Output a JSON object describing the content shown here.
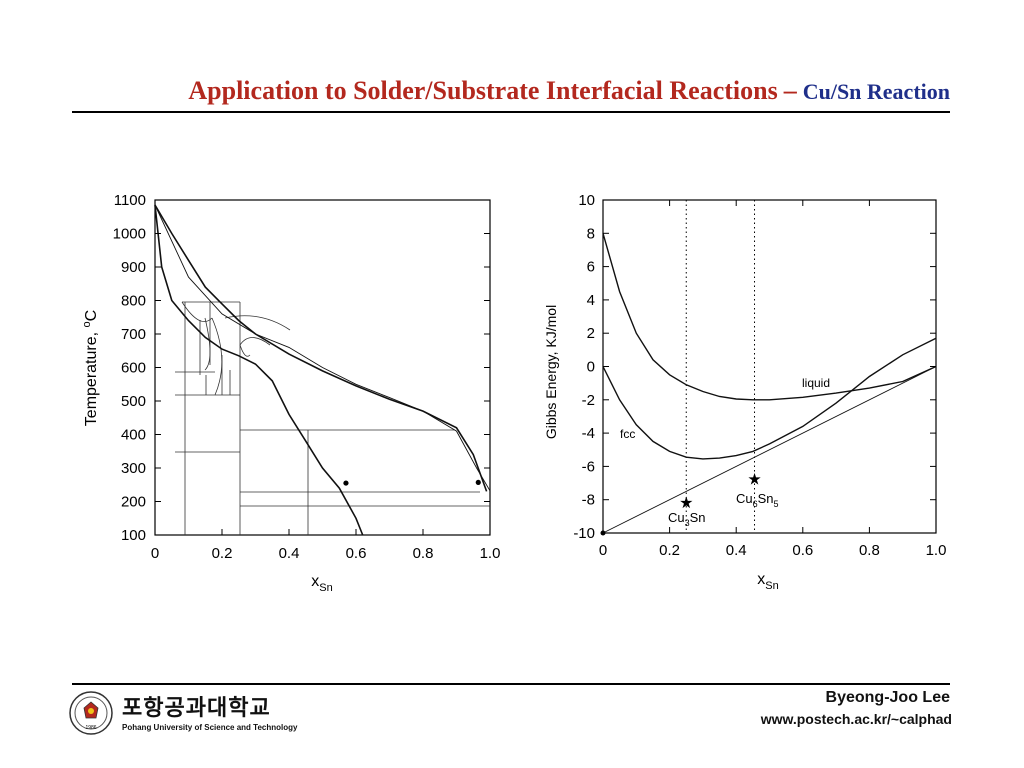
{
  "title": {
    "main": "Application to Solder/Substrate Interfacial Reactions",
    "dash": "–",
    "sub": "Cu/Sn Reaction"
  },
  "chart_data": [
    {
      "type": "line",
      "chart": "phase-diagram",
      "xlabel": "x",
      "xlabel_sub": "Sn",
      "ylabel": "Temperature, ",
      "ylabel_unit": "oC",
      "xlim": [
        0,
        1.0
      ],
      "ylim": [
        100,
        1100
      ],
      "x_ticks": [
        "0",
        "0.2",
        "0.4",
        "0.6",
        "0.8",
        "1.0"
      ],
      "y_ticks": [
        "100",
        "200",
        "300",
        "400",
        "500",
        "600",
        "700",
        "800",
        "900",
        "1000",
        "1100"
      ],
      "x_tick_values": [
        0,
        0.2,
        0.4,
        0.6,
        0.8,
        1.0
      ],
      "y_tick_values": [
        100,
        200,
        300,
        400,
        500,
        600,
        700,
        800,
        900,
        1000,
        1100
      ],
      "curves": [
        {
          "name": "",
          "style": "solid-bold",
          "points": [
            [
              0,
              1085
            ],
            [
              0.05,
              1000
            ],
            [
              0.1,
              920
            ],
            [
              0.15,
              840
            ],
            [
              0.2,
              790
            ],
            [
              0.25,
              740
            ],
            [
              0.3,
              700
            ],
            [
              0.4,
              640
            ],
            [
              0.5,
              590
            ],
            [
              0.6,
              545
            ],
            [
              0.7,
              505
            ],
            [
              0.8,
              470
            ],
            [
              0.9,
              420
            ],
            [
              0.95,
              340
            ],
            [
              0.99,
              230
            ]
          ]
        },
        {
          "name": "",
          "style": "solid-bold",
          "points": [
            [
              0,
              1085
            ],
            [
              0.02,
              900
            ],
            [
              0.05,
              800
            ],
            [
              0.1,
              740
            ],
            [
              0.15,
              690
            ],
            [
              0.2,
              655
            ],
            [
              0.25,
              635
            ],
            [
              0.3,
              610
            ],
            [
              0.35,
              560
            ],
            [
              0.4,
              460
            ],
            [
              0.45,
              380
            ],
            [
              0.5,
              300
            ],
            [
              0.55,
              240
            ],
            [
              0.6,
              150
            ],
            [
              0.62,
              100
            ]
          ]
        },
        {
          "name": "",
          "style": "solid-thin",
          "points": [
            [
              0,
              1085
            ],
            [
              0.1,
              870
            ],
            [
              0.2,
              760
            ],
            [
              0.3,
              700
            ],
            [
              0.4,
              660
            ],
            [
              0.5,
              600
            ],
            [
              0.6,
              550
            ],
            [
              0.7,
              510
            ],
            [
              0.8,
              470
            ],
            [
              0.9,
              410
            ],
            [
              0.96,
              300
            ],
            [
              1.0,
              232
            ]
          ]
        }
      ],
      "markers": [
        {
          "x": 0.57,
          "y": 255
        },
        {
          "x": 0.965,
          "y": 257
        }
      ]
    },
    {
      "type": "line",
      "chart": "gibbs-energy",
      "xlabel": "x",
      "xlabel_sub": "Sn",
      "ylabel": "Gibbs Energy, KJ/mol",
      "xlim": [
        0,
        1.0
      ],
      "ylim": [
        -10,
        10
      ],
      "x_ticks": [
        "0",
        "0.2",
        "0.4",
        "0.6",
        "0.8",
        "1.0"
      ],
      "y_ticks": [
        "10",
        "8",
        "6",
        "4",
        "2",
        "0",
        "-2",
        "-4",
        "-6",
        "-8",
        "-10"
      ],
      "x_tick_values": [
        0,
        0.2,
        0.4,
        0.6,
        0.8,
        1.0
      ],
      "y_tick_values": [
        10,
        8,
        6,
        4,
        2,
        0,
        -2,
        -4,
        -6,
        -8,
        -10
      ],
      "series": [
        {
          "name": "liquid",
          "points": [
            [
              0,
              8.0
            ],
            [
              0.05,
              4.5
            ],
            [
              0.1,
              2.0
            ],
            [
              0.15,
              0.4
            ],
            [
              0.2,
              -0.5
            ],
            [
              0.25,
              -1.1
            ],
            [
              0.3,
              -1.5
            ],
            [
              0.35,
              -1.8
            ],
            [
              0.4,
              -1.95
            ],
            [
              0.45,
              -2.0
            ],
            [
              0.5,
              -2.0
            ],
            [
              0.6,
              -1.85
            ],
            [
              0.7,
              -1.6
            ],
            [
              0.8,
              -1.3
            ],
            [
              0.9,
              -0.9
            ],
            [
              1.0,
              0.0
            ]
          ]
        },
        {
          "name": "fcc",
          "points": [
            [
              0,
              0.0
            ],
            [
              0.05,
              -2.0
            ],
            [
              0.1,
              -3.5
            ],
            [
              0.15,
              -4.5
            ],
            [
              0.2,
              -5.1
            ],
            [
              0.25,
              -5.45
            ],
            [
              0.3,
              -5.55
            ],
            [
              0.35,
              -5.5
            ],
            [
              0.4,
              -5.35
            ],
            [
              0.45,
              -5.1
            ],
            [
              0.5,
              -4.65
            ],
            [
              0.6,
              -3.6
            ],
            [
              0.7,
              -2.2
            ],
            [
              0.8,
              -0.6
            ],
            [
              0.9,
              0.7
            ],
            [
              1.0,
              1.7
            ]
          ]
        }
      ],
      "common_tangent": [
        [
          0,
          -10.0
        ],
        [
          1.0,
          0.0
        ]
      ],
      "dotted_x": [
        0.25,
        0.455
      ],
      "stars": [
        {
          "label": "Cu",
          "sub1": "3",
          "label2": "Sn",
          "sub2": "",
          "x": 0.25,
          "y": -8.2
        },
        {
          "label": "Cu",
          "sub1": "6",
          "label2": "Sn",
          "sub2": "5",
          "x": 0.455,
          "y": -6.8
        }
      ]
    }
  ],
  "footer": {
    "university_ko": "포항공과대학교",
    "university_en": "Pohang University of Science and Technology",
    "author": "Byeong-Joo Lee",
    "website": "www.postech.ac.kr/~calphad",
    "seal_year": "1986"
  }
}
